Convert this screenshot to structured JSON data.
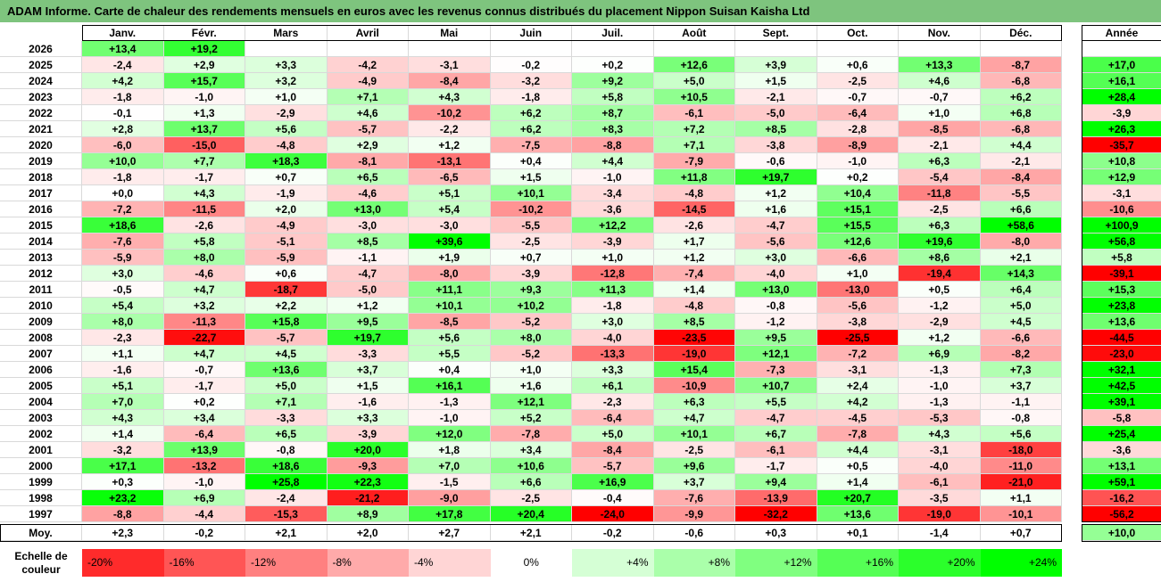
{
  "title": "ADAM Informe. Carte de chaleur des rendements mensuels en euros avec les revenus connus distribués du placement Nippon Suisan Kaisha Ltd",
  "chart_data": {
    "type": "heatmap",
    "title": "ADAM Informe. Carte de chaleur des rendements mensuels en euros avec les revenus connus distribués du placement Nippon Suisan Kaisha Ltd",
    "months": [
      "Janv.",
      "Févr.",
      "Mars",
      "Avril",
      "Mai",
      "Juin",
      "Juil.",
      "Août",
      "Sept.",
      "Oct.",
      "Nov.",
      "Déc."
    ],
    "year_header": "Année",
    "rows": [
      {
        "year": "2026",
        "values": [
          13.4,
          19.2,
          null,
          null,
          null,
          null,
          null,
          null,
          null,
          null,
          null,
          null
        ],
        "annual": null
      },
      {
        "year": "2025",
        "values": [
          -2.4,
          2.9,
          3.3,
          -4.2,
          -3.1,
          -0.2,
          0.2,
          12.6,
          3.9,
          0.6,
          13.3,
          -8.7
        ],
        "annual": 17.0
      },
      {
        "year": "2024",
        "values": [
          4.2,
          15.7,
          3.2,
          -4.9,
          -8.4,
          -3.2,
          9.2,
          5.0,
          1.5,
          -2.5,
          4.6,
          -6.8
        ],
        "annual": 16.1
      },
      {
        "year": "2023",
        "values": [
          -1.8,
          -1.0,
          1.0,
          7.1,
          4.3,
          -1.8,
          5.8,
          10.5,
          -2.1,
          -0.7,
          -0.7,
          6.2
        ],
        "annual": 28.4
      },
      {
        "year": "2022",
        "values": [
          -0.1,
          1.3,
          -2.9,
          4.6,
          -10.2,
          6.2,
          8.7,
          -6.1,
          -5.0,
          -6.4,
          1.0,
          6.8
        ],
        "annual": -3.9
      },
      {
        "year": "2021",
        "values": [
          2.8,
          13.7,
          5.6,
          -5.7,
          -2.2,
          6.2,
          8.3,
          7.2,
          8.5,
          -2.8,
          -8.5,
          -6.8
        ],
        "annual": 26.3
      },
      {
        "year": "2020",
        "values": [
          -6.0,
          -15.0,
          -4.8,
          2.9,
          1.2,
          -7.5,
          -8.8,
          7.1,
          -3.8,
          -8.9,
          -2.1,
          4.4
        ],
        "annual": -35.7
      },
      {
        "year": "2019",
        "values": [
          10.0,
          7.7,
          18.3,
          -8.1,
          -13.1,
          0.4,
          4.4,
          -7.9,
          -0.6,
          -1.0,
          6.3,
          -2.1
        ],
        "annual": 10.8
      },
      {
        "year": "2018",
        "values": [
          -1.8,
          -1.7,
          0.7,
          6.5,
          -6.5,
          1.5,
          -1.0,
          11.8,
          19.7,
          0.2,
          -5.4,
          -8.4
        ],
        "annual": 12.9
      },
      {
        "year": "2017",
        "values": [
          0.0,
          4.3,
          -1.9,
          -4.6,
          5.1,
          10.1,
          -3.4,
          -4.8,
          1.2,
          10.4,
          -11.8,
          -5.5
        ],
        "annual": -3.1
      },
      {
        "year": "2016",
        "values": [
          -7.2,
          -11.5,
          2.0,
          13.0,
          5.4,
          -10.2,
          -3.6,
          -14.5,
          1.6,
          15.1,
          -2.5,
          6.6
        ],
        "annual": -10.6
      },
      {
        "year": "2015",
        "values": [
          18.6,
          -2.6,
          -4.9,
          -3.0,
          -3.0,
          -5.5,
          12.2,
          -2.6,
          -4.7,
          15.5,
          6.3,
          58.6
        ],
        "annual": 100.9
      },
      {
        "year": "2014",
        "values": [
          -7.6,
          5.8,
          -5.1,
          8.5,
          39.6,
          -2.5,
          -3.9,
          1.7,
          -5.6,
          12.6,
          19.6,
          -8.0
        ],
        "annual": 56.8
      },
      {
        "year": "2013",
        "values": [
          -5.9,
          8.0,
          -5.9,
          -1.1,
          1.9,
          0.7,
          1.0,
          1.2,
          3.0,
          -6.6,
          8.6,
          2.1
        ],
        "annual": 5.8
      },
      {
        "year": "2012",
        "values": [
          3.0,
          -4.6,
          0.6,
          -4.7,
          -8.0,
          -3.9,
          -12.8,
          -7.4,
          -4.0,
          1.0,
          -19.4,
          14.3
        ],
        "annual": -39.1
      },
      {
        "year": "2011",
        "values": [
          -0.5,
          4.7,
          -18.7,
          -5.0,
          11.1,
          9.3,
          11.3,
          1.4,
          13.0,
          -13.0,
          0.5,
          6.4
        ],
        "annual": 15.3
      },
      {
        "year": "2010",
        "values": [
          5.4,
          3.2,
          2.2,
          1.2,
          10.1,
          10.2,
          -1.8,
          -4.8,
          -0.8,
          -5.6,
          -1.2,
          5.0
        ],
        "annual": 23.8
      },
      {
        "year": "2009",
        "values": [
          8.0,
          -11.3,
          15.8,
          9.5,
          -8.5,
          -5.2,
          3.0,
          8.5,
          -1.2,
          -3.8,
          -2.9,
          4.5
        ],
        "annual": 13.6
      },
      {
        "year": "2008",
        "values": [
          -2.3,
          -22.7,
          -5.7,
          19.7,
          5.6,
          8.0,
          -4.0,
          -23.5,
          9.5,
          -25.5,
          1.2,
          -6.6
        ],
        "annual": -44.5
      },
      {
        "year": "2007",
        "values": [
          1.1,
          4.7,
          4.5,
          -3.3,
          5.5,
          -5.2,
          -13.3,
          -19.0,
          12.1,
          -7.2,
          6.9,
          -8.2
        ],
        "annual": -23.0
      },
      {
        "year": "2006",
        "values": [
          -1.6,
          -0.7,
          13.6,
          3.7,
          0.4,
          1.0,
          3.3,
          15.4,
          -7.3,
          -3.1,
          -1.3,
          7.3
        ],
        "annual": 32.1
      },
      {
        "year": "2005",
        "values": [
          5.1,
          -1.7,
          5.0,
          1.5,
          16.1,
          1.6,
          6.1,
          -10.9,
          10.7,
          2.4,
          -1.0,
          3.7
        ],
        "annual": 42.5
      },
      {
        "year": "2004",
        "values": [
          7.0,
          0.2,
          7.1,
          -1.6,
          -1.3,
          12.1,
          -2.3,
          6.3,
          5.5,
          4.2,
          -1.3,
          -1.1
        ],
        "annual": 39.1
      },
      {
        "year": "2003",
        "values": [
          4.3,
          3.4,
          -3.3,
          3.3,
          -1.0,
          5.2,
          -6.4,
          4.7,
          -4.7,
          -4.5,
          -5.3,
          -0.8
        ],
        "annual": -5.8
      },
      {
        "year": "2002",
        "values": [
          1.4,
          -6.4,
          6.5,
          -3.9,
          12.0,
          -7.8,
          5.0,
          10.1,
          6.7,
          -7.8,
          4.3,
          5.6
        ],
        "annual": 25.4
      },
      {
        "year": "2001",
        "values": [
          -3.2,
          13.9,
          -0.8,
          20.0,
          1.8,
          3.4,
          -8.4,
          -2.5,
          -6.1,
          4.4,
          -3.1,
          -18.0
        ],
        "annual": -3.6
      },
      {
        "year": "2000",
        "values": [
          17.1,
          -13.2,
          18.6,
          -9.3,
          7.0,
          10.6,
          -5.7,
          9.6,
          -1.7,
          0.5,
          -4.0,
          -11.0
        ],
        "annual": 13.1
      },
      {
        "year": "1999",
        "values": [
          0.3,
          -1.0,
          25.8,
          22.3,
          -1.5,
          6.6,
          16.9,
          3.7,
          9.4,
          1.4,
          -6.1,
          -21.0
        ],
        "annual": 59.1
      },
      {
        "year": "1998",
        "values": [
          23.2,
          6.9,
          -2.4,
          -21.2,
          -9.0,
          -2.5,
          -0.4,
          -7.6,
          -13.9,
          20.7,
          -3.5,
          1.1
        ],
        "annual": -16.2
      },
      {
        "year": "1997",
        "values": [
          -8.8,
          -4.4,
          -15.3,
          8.9,
          17.8,
          20.4,
          -24.0,
          -9.9,
          -32.2,
          13.6,
          -19.0,
          -10.1
        ],
        "annual": -56.2
      }
    ],
    "average": {
      "label": "Moy.",
      "values": [
        2.3,
        -0.2,
        2.1,
        2.0,
        2.7,
        2.1,
        -0.2,
        -0.6,
        0.3,
        0.1,
        -1.4,
        0.7
      ],
      "annual": 10.0
    },
    "color_scale": {
      "label": "Echelle de couleur",
      "stops": [
        "-20%",
        "-16%",
        "-12%",
        "-8%",
        "-4%",
        "0%",
        "+4%",
        "+8%",
        "+12%",
        "+16%",
        "+20%",
        "+24%"
      ]
    },
    "colors": {
      "negative": "#ff0000",
      "positive": "#00ff00",
      "neutral": "#ffffff"
    }
  }
}
